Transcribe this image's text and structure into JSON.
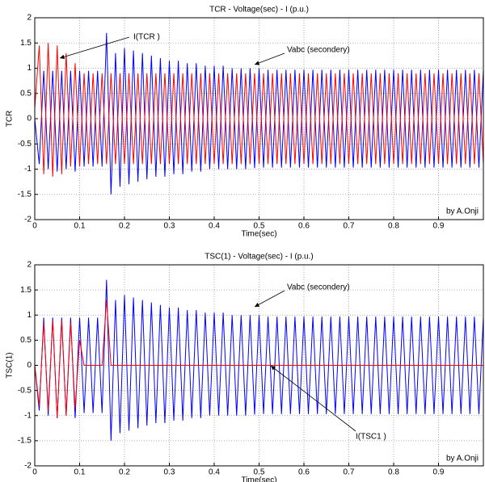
{
  "chart_data": [
    {
      "type": "line",
      "title": "TCR - Voltage(sec) - I (p.u.)",
      "xlabel": "Time(sec)",
      "ylabel": "TCR",
      "annotations": [
        "I(TCR )",
        "Vabc (secondery)",
        "by A.Onji"
      ],
      "xlim": [
        0,
        1
      ],
      "ylim": [
        -2,
        2
      ],
      "xticks": [
        0,
        0.1,
        0.2,
        0.3,
        0.4,
        0.5,
        0.6,
        0.7,
        0.8,
        0.9
      ],
      "yticks": [
        -2,
        -1.5,
        -1,
        -0.5,
        0,
        0.5,
        1,
        1.5,
        2
      ],
      "grid": true,
      "x": [
        0,
        0.01,
        0.02,
        0.03,
        0.04,
        0.05,
        0.06,
        0.07,
        0.08,
        0.09,
        0.1,
        0.11,
        0.12,
        0.13,
        0.14,
        0.15,
        0.16,
        0.17,
        0.18,
        0.19,
        0.2,
        0.21,
        0.22,
        0.23,
        0.24,
        0.25,
        0.26,
        0.27,
        0.28,
        0.29,
        0.3,
        0.31,
        0.32,
        0.33,
        0.34,
        0.35,
        0.36,
        0.37,
        0.38,
        0.39,
        0.4,
        0.41,
        0.42,
        0.43,
        0.44,
        0.45,
        0.46,
        0.47,
        0.48,
        0.49,
        0.5,
        0.51,
        0.52,
        0.53,
        0.54,
        0.55,
        0.56,
        0.57,
        0.58,
        0.59,
        0.6,
        0.61,
        0.62,
        0.63,
        0.64,
        0.65,
        0.66,
        0.67,
        0.68,
        0.69,
        0.7,
        0.71,
        0.72,
        0.73,
        0.74,
        0.75,
        0.76,
        0.77,
        0.78,
        0.79,
        0.8,
        0.81,
        0.82,
        0.83,
        0.84,
        0.85,
        0.86,
        0.87,
        0.88,
        0.89,
        0.9,
        0.91,
        0.92,
        0.93,
        0.94,
        0.95,
        0.96,
        0.97,
        0.98,
        0.99,
        1.0
      ],
      "series": [
        {
          "color": "#0000ff",
          "values": [
            0,
            -0.9,
            0.95,
            -1.0,
            0.95,
            -1.05,
            0.95,
            -1.0,
            0.95,
            -1.05,
            0.95,
            -0.95,
            0.95,
            -0.95,
            0.95,
            -0.95,
            1.7,
            -1.5,
            1.3,
            -1.35,
            1.4,
            -1.3,
            1.35,
            -1.25,
            1.3,
            -1.2,
            1.25,
            -1.15,
            1.2,
            -1.15,
            1.15,
            -1.1,
            1.15,
            -1.1,
            1.1,
            -1.05,
            1.1,
            -1.05,
            1.05,
            -1.0,
            1.05,
            -1.0,
            1.05,
            -1.0,
            1.0,
            -1.0,
            1.0,
            -1.0,
            1.0,
            -0.98,
            1.0,
            -0.97,
            0.97,
            -0.97,
            0.97,
            -0.97,
            0.97,
            -0.97,
            0.97,
            -0.97,
            0.97,
            -0.97,
            0.97,
            -0.97,
            0.97,
            -0.97,
            0.97,
            -0.97,
            0.97,
            -0.97,
            0.97,
            -0.97,
            0.97,
            -0.97,
            0.97,
            -0.97,
            0.97,
            -0.97,
            0.97,
            -0.97,
            0.97,
            -0.97,
            0.97,
            -0.97,
            0.97,
            -0.97,
            0.97,
            -0.97,
            0.97,
            -0.97,
            0.97,
            -0.97,
            0.97,
            -0.97,
            0.97,
            -0.97,
            0.97,
            -0.97,
            0.97,
            -0.97,
            0.97
          ]
        },
        {
          "color": "#ff0000",
          "values": [
            0.2,
            1.45,
            -1.1,
            1.5,
            -1.15,
            1.45,
            -1.1,
            1.3,
            -0.95,
            1.1,
            -0.95,
            0.9,
            -0.9,
            0.9,
            -0.9,
            0.9,
            -0.9,
            0.9,
            -0.9,
            0.9,
            -0.9,
            0.9,
            -0.9,
            0.9,
            -0.9,
            0.9,
            -0.9,
            0.9,
            -0.9,
            0.9,
            -0.9,
            0.9,
            -0.9,
            0.9,
            -0.9,
            0.9,
            -0.9,
            0.9,
            -0.9,
            0.9,
            -0.9,
            0.9,
            -0.9,
            0.9,
            -0.9,
            0.9,
            -0.9,
            0.9,
            -0.9,
            0.9,
            -0.9,
            0.9,
            -0.9,
            0.9,
            -0.9,
            0.9,
            -0.9,
            0.9,
            -0.9,
            0.9,
            -0.9,
            0.9,
            -0.9,
            0.9,
            -0.9,
            0.9,
            -0.9,
            0.9,
            -0.9,
            0.9,
            -0.9,
            0.9,
            -0.9,
            0.9,
            -0.9,
            0.9,
            -0.9,
            0.9,
            -0.9,
            0.9,
            -0.9,
            0.9,
            -0.9,
            0.9,
            -0.9,
            0.9,
            -0.9,
            0.9,
            -0.9,
            0.9,
            -0.9,
            0.9,
            -0.9,
            0.9,
            -0.9,
            0.9,
            -0.9,
            0.9,
            -0.9,
            0.9,
            -0.9
          ]
        }
      ]
    },
    {
      "type": "line",
      "title": "TSC(1) - Voltage(sec) - I (p.u.)",
      "xlabel": "Time(sec)",
      "ylabel": "TSC(1)",
      "annotations": [
        "Vabc (secondery)",
        "I(TSC1 )",
        "by A.Onji"
      ],
      "xlim": [
        0,
        1
      ],
      "ylim": [
        -2,
        2
      ],
      "xticks": [
        0,
        0.1,
        0.2,
        0.3,
        0.4,
        0.5,
        0.6,
        0.7,
        0.8,
        0.9
      ],
      "yticks": [
        -2,
        -1.5,
        -1,
        -0.5,
        0,
        0.5,
        1,
        1.5,
        2
      ],
      "grid": true,
      "x": [
        0,
        0.01,
        0.02,
        0.03,
        0.04,
        0.05,
        0.06,
        0.07,
        0.08,
        0.09,
        0.1,
        0.11,
        0.12,
        0.13,
        0.14,
        0.15,
        0.16,
        0.17,
        0.18,
        0.19,
        0.2,
        0.21,
        0.22,
        0.23,
        0.24,
        0.25,
        0.26,
        0.27,
        0.28,
        0.29,
        0.3,
        0.31,
        0.32,
        0.33,
        0.34,
        0.35,
        0.36,
        0.37,
        0.38,
        0.39,
        0.4,
        0.41,
        0.42,
        0.43,
        0.44,
        0.45,
        0.46,
        0.47,
        0.48,
        0.49,
        0.5,
        0.51,
        0.52,
        0.53,
        0.54,
        0.55,
        0.56,
        0.57,
        0.58,
        0.59,
        0.6,
        0.61,
        0.62,
        0.63,
        0.64,
        0.65,
        0.66,
        0.67,
        0.68,
        0.69,
        0.7,
        0.71,
        0.72,
        0.73,
        0.74,
        0.75,
        0.76,
        0.77,
        0.78,
        0.79,
        0.8,
        0.81,
        0.82,
        0.83,
        0.84,
        0.85,
        0.86,
        0.87,
        0.88,
        0.89,
        0.9,
        0.91,
        0.92,
        0.93,
        0.94,
        0.95,
        0.96,
        0.97,
        0.98,
        0.99,
        1.0
      ],
      "series": [
        {
          "color": "#0000ff",
          "values": [
            0,
            -0.9,
            0.95,
            -1.0,
            0.95,
            -1.05,
            0.95,
            -1.0,
            0.95,
            -1.05,
            0.95,
            -0.95,
            0.95,
            -0.95,
            0.95,
            -0.95,
            1.7,
            -1.5,
            1.3,
            -1.35,
            1.4,
            -1.3,
            1.35,
            -1.25,
            1.3,
            -1.2,
            1.25,
            -1.15,
            1.2,
            -1.15,
            1.15,
            -1.1,
            1.15,
            -1.1,
            1.1,
            -1.05,
            1.1,
            -1.05,
            1.05,
            -1.0,
            1.05,
            -1.0,
            1.05,
            -1.0,
            1.0,
            -1.0,
            1.0,
            -1.0,
            1.0,
            -0.98,
            1.0,
            -0.97,
            0.97,
            -0.97,
            0.97,
            -0.97,
            0.97,
            -0.97,
            0.97,
            -0.97,
            0.97,
            -0.97,
            0.97,
            -0.97,
            0.97,
            -0.97,
            0.97,
            -0.97,
            0.97,
            -0.97,
            0.97,
            -0.97,
            0.97,
            -0.97,
            0.97,
            -0.97,
            0.97,
            -0.97,
            0.97,
            -0.97,
            0.97,
            -0.97,
            0.97,
            -0.97,
            0.97,
            -0.97,
            0.97,
            -0.97,
            0.97,
            -0.97,
            0.97,
            -0.97,
            0.97,
            -0.97,
            0.97,
            -0.97,
            0.97,
            -0.97,
            0.97,
            -0.97,
            0.97
          ]
        },
        {
          "color": "#ff0000",
          "values": [
            0,
            -0.8,
            0.85,
            -0.9,
            0.9,
            -1.05,
            0.9,
            -1.0,
            0.85,
            -0.85,
            0.5,
            0,
            0,
            0,
            0,
            0,
            1.3,
            0,
            0,
            0,
            0,
            0,
            0,
            0,
            0,
            0,
            0,
            0,
            0,
            0,
            0,
            0,
            0,
            0,
            0,
            0,
            0,
            0,
            0,
            0,
            0,
            0,
            0,
            0,
            0,
            0,
            0,
            0,
            0,
            0,
            0,
            0,
            0,
            0,
            0,
            0,
            0,
            0,
            0,
            0,
            0,
            0,
            0,
            0,
            0,
            0,
            0,
            0,
            0,
            0,
            0,
            0,
            0,
            0,
            0,
            0,
            0,
            0,
            0,
            0,
            0,
            0,
            0,
            0,
            0,
            0,
            0,
            0,
            0,
            0,
            0,
            0,
            0,
            0,
            0,
            0,
            0,
            0,
            0,
            0,
            0
          ]
        }
      ]
    }
  ]
}
